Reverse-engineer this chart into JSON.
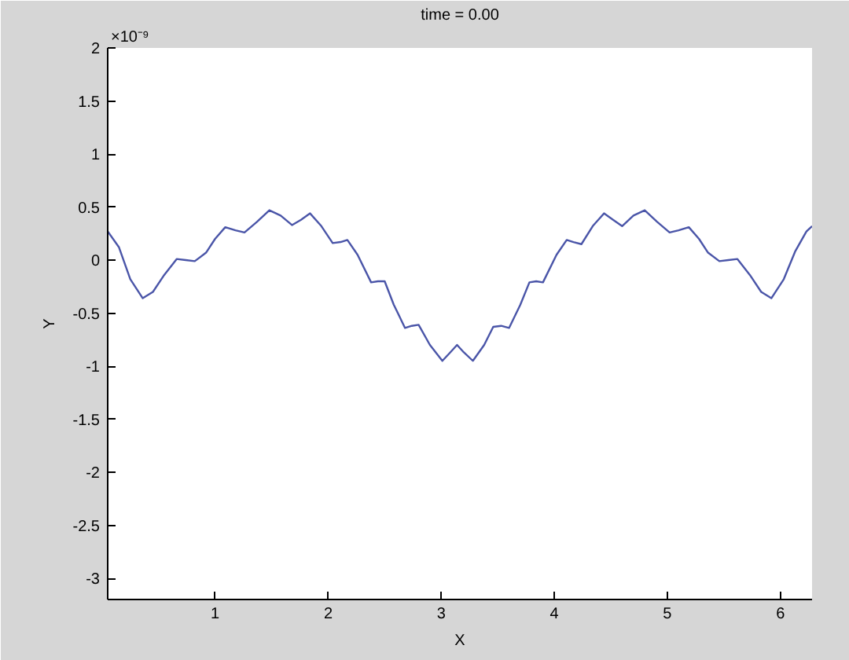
{
  "chart_data": {
    "type": "line",
    "title": "time = 0.00",
    "xlabel": "X",
    "ylabel": "Y",
    "annotations": [
      "×10⁻⁹"
    ],
    "xlim": [
      0.05,
      6.28
    ],
    "xticks": [
      1,
      2,
      3,
      4,
      5,
      6
    ],
    "ylim": [
      -3.2,
      2
    ],
    "yticks": [
      -3,
      -2.5,
      -2,
      -1.5,
      -1,
      -0.5,
      0,
      0.5,
      1,
      1.5,
      2
    ],
    "series": [
      {
        "color": "#4a55a8",
        "x": [
          0.05,
          0.15,
          0.25,
          0.36,
          0.45,
          0.55,
          0.66,
          0.74,
          0.82,
          0.92,
          1.0,
          1.09,
          1.18,
          1.26,
          1.37,
          1.48,
          1.58,
          1.68,
          1.76,
          1.84,
          1.94,
          2.04,
          2.11,
          2.17,
          2.26,
          2.38,
          2.44,
          2.5,
          2.58,
          2.68,
          2.74,
          2.8,
          2.9,
          3.01,
          3.08,
          3.14,
          3.2,
          3.28,
          3.38,
          3.46,
          3.53,
          3.6,
          3.7,
          3.78,
          3.84,
          3.9,
          4.02,
          4.11,
          4.17,
          4.24,
          4.34,
          4.44,
          4.52,
          4.6,
          4.7,
          4.8,
          4.91,
          5.02,
          5.1,
          5.19,
          5.28,
          5.36,
          5.46,
          5.54,
          5.62,
          5.73,
          5.83,
          5.92,
          6.03,
          6.13,
          6.23,
          6.28
        ],
        "values": [
          0.27,
          0.12,
          -0.18,
          -0.36,
          -0.3,
          -0.14,
          0.01,
          0.0,
          -0.01,
          0.07,
          0.2,
          0.31,
          0.28,
          0.26,
          0.36,
          0.47,
          0.42,
          0.33,
          0.38,
          0.44,
          0.32,
          0.16,
          0.17,
          0.19,
          0.05,
          -0.21,
          -0.2,
          -0.2,
          -0.42,
          -0.64,
          -0.62,
          -0.61,
          -0.8,
          -0.95,
          -0.87,
          -0.8,
          -0.87,
          -0.95,
          -0.8,
          -0.63,
          -0.62,
          -0.64,
          -0.42,
          -0.21,
          -0.2,
          -0.21,
          0.05,
          0.19,
          0.17,
          0.15,
          0.32,
          0.44,
          0.38,
          0.32,
          0.42,
          0.47,
          0.36,
          0.26,
          0.28,
          0.31,
          0.2,
          0.07,
          -0.01,
          0.0,
          0.01,
          -0.14,
          -0.3,
          -0.36,
          -0.18,
          0.08,
          0.27,
          0.32
        ]
      }
    ]
  }
}
